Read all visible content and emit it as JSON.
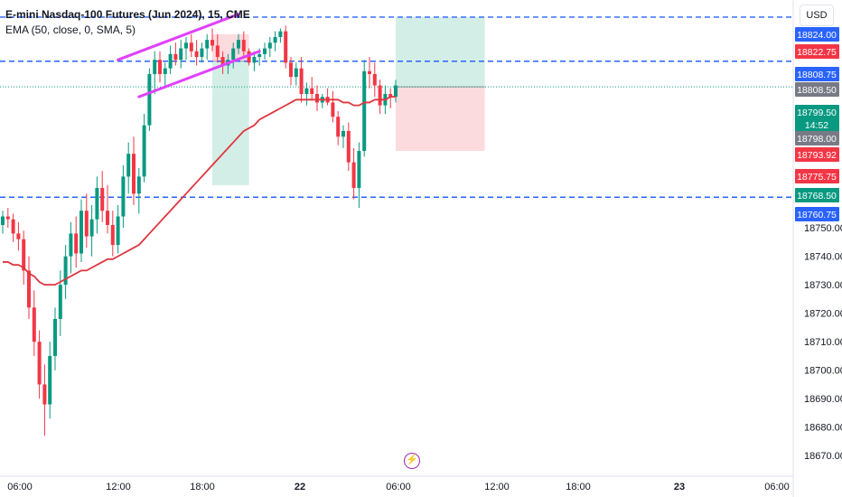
{
  "header": {
    "title": "E-mini Nasdaq-100 Futures (Jun 2024), 15, CME",
    "indicator": "EMA (50, close, 0, SMA, 5)"
  },
  "currency_button": "USD",
  "bolt_icon": "lightning-bolt-icon",
  "colors": {
    "up": "#089981",
    "down": "#f23645",
    "ema": "#e0363f",
    "channel": "#e040fb",
    "dashed": "#2962ff",
    "target_zone": "#d1ede5",
    "stop_zone": "#fcd9dd"
  },
  "chart_data": {
    "type": "candlestick",
    "instrument": "E-mini Nasdaq-100 Futures (Jun 2024)",
    "timeframe": "15",
    "exchange": "CME",
    "x_ticks": [
      "06:00",
      "12:00",
      "18:00",
      "22",
      "06:00",
      "12:00",
      "18:00",
      "23",
      "06:00"
    ],
    "y_ticks": [
      18750,
      18740,
      18730,
      18720,
      18710,
      18700,
      18690,
      18680,
      18670
    ],
    "ylim": [
      18665,
      18830
    ],
    "candles": [
      [
        18751,
        18756,
        18748,
        18754
      ],
      [
        18754,
        18757,
        18750,
        18753
      ],
      [
        18753,
        18755,
        18745,
        18748
      ],
      [
        18748,
        18752,
        18742,
        18746
      ],
      [
        18746,
        18749,
        18730,
        18735
      ],
      [
        18735,
        18740,
        18718,
        18722
      ],
      [
        18722,
        18728,
        18705,
        18710
      ],
      [
        18710,
        18714,
        18690,
        18695
      ],
      [
        18695,
        18702,
        18677,
        18688
      ],
      [
        18688,
        18710,
        18683,
        18705
      ],
      [
        18705,
        18722,
        18700,
        18718
      ],
      [
        18718,
        18735,
        18712,
        18730
      ],
      [
        18730,
        18744,
        18725,
        18740
      ],
      [
        18740,
        18752,
        18734,
        18748
      ],
      [
        18748,
        18754,
        18736,
        18741
      ],
      [
        18741,
        18760,
        18738,
        18756
      ],
      [
        18756,
        18762,
        18743,
        18747
      ],
      [
        18747,
        18758,
        18740,
        18753
      ],
      [
        18753,
        18768,
        18748,
        18764
      ],
      [
        18764,
        18770,
        18752,
        18756
      ],
      [
        18756,
        18765,
        18748,
        18751
      ],
      [
        18751,
        18756,
        18740,
        18744
      ],
      [
        18744,
        18758,
        18741,
        18754
      ],
      [
        18754,
        18772,
        18750,
        18768
      ],
      [
        18768,
        18780,
        18762,
        18776
      ],
      [
        18776,
        18782,
        18758,
        18762
      ],
      [
        18762,
        18771,
        18755,
        18768
      ],
      [
        18768,
        18790,
        18766,
        18786
      ],
      [
        18786,
        18806,
        18784,
        18804
      ],
      [
        18804,
        18812,
        18797,
        18809
      ],
      [
        18809,
        18812,
        18801,
        18804
      ],
      [
        18804,
        18808,
        18799,
        18806
      ],
      [
        18806,
        18814,
        18804,
        18811
      ],
      [
        18811,
        18815,
        18807,
        18809
      ],
      [
        18809,
        18816,
        18806,
        18813
      ],
      [
        18813,
        18817,
        18809,
        18815
      ],
      [
        18815,
        18818,
        18810,
        18812
      ],
      [
        18812,
        18816,
        18807,
        18810
      ],
      [
        18810,
        18815,
        18808,
        18813
      ],
      [
        18813,
        18818,
        18809,
        18816
      ],
      [
        18816,
        18820,
        18812,
        18814
      ],
      [
        18814,
        18818,
        18808,
        18810
      ],
      [
        18810,
        18812,
        18804,
        18807
      ],
      [
        18807,
        18811,
        18804,
        18809
      ],
      [
        18809,
        18815,
        18806,
        18813
      ],
      [
        18813,
        18818,
        18811,
        18816
      ],
      [
        18816,
        18819,
        18810,
        18812
      ],
      [
        18812,
        18813,
        18807,
        18808
      ],
      [
        18808,
        18812,
        18805,
        18810
      ],
      [
        18810,
        18813,
        18807,
        18811
      ],
      [
        18811,
        18815,
        18809,
        18813
      ],
      [
        18813,
        18817,
        18810,
        18815
      ],
      [
        18815,
        18819,
        18812,
        18817
      ],
      [
        18817,
        18820,
        18815,
        18819
      ],
      [
        18819,
        18821,
        18806,
        18808
      ],
      [
        18808,
        18810,
        18800,
        18803
      ],
      [
        18803,
        18808,
        18800,
        18806
      ],
      [
        18806,
        18810,
        18794,
        18797
      ],
      [
        18797,
        18801,
        18793,
        18799
      ],
      [
        18799,
        18803,
        18795,
        18797
      ],
      [
        18797,
        18800,
        18791,
        18794
      ],
      [
        18794,
        18797,
        18792,
        18796
      ],
      [
        18796,
        18799,
        18793,
        18794
      ],
      [
        18794,
        18798,
        18787,
        18789
      ],
      [
        18789,
        18791,
        18779,
        18782
      ],
      [
        18782,
        18786,
        18778,
        18784
      ],
      [
        18784,
        18787,
        18770,
        18773
      ],
      [
        18773,
        18778,
        18760,
        18764
      ],
      [
        18764,
        18780,
        18757,
        18777
      ],
      [
        18777,
        18809,
        18775,
        18805
      ],
      [
        18805,
        18810,
        18799,
        18804
      ],
      [
        18804,
        18808,
        18796,
        18800
      ],
      [
        18800,
        18802,
        18790,
        18793
      ],
      [
        18793,
        18800,
        18790,
        18797
      ],
      [
        18797,
        18799,
        18792,
        18796
      ],
      [
        18796,
        18802,
        18794,
        18800
      ]
    ],
    "ema50": [
      18738,
      18738,
      18737,
      18737,
      18736,
      18734,
      18733,
      18731,
      18730,
      18730,
      18730,
      18731,
      18732,
      18733,
      18734,
      18735,
      18735,
      18736,
      18737,
      18738,
      18739,
      18739,
      18740,
      18741,
      18742,
      18743,
      18744,
      18746,
      18748,
      18750,
      18752,
      18754,
      18756,
      18758,
      18760,
      18762,
      18764,
      18766,
      18768,
      18770,
      18772,
      18774,
      18776,
      18778,
      18780,
      18782,
      18784,
      18785,
      18786,
      18788,
      18789,
      18790,
      18791,
      18792,
      18793,
      18794,
      18795,
      18795,
      18795,
      18795,
      18795,
      18795,
      18795,
      18795,
      18795,
      18794,
      18794,
      18793,
      18793,
      18794,
      18794,
      18795,
      18795,
      18795,
      18796,
      18796
    ],
    "channel_lines": [
      {
        "from_index": 22,
        "to_index": 45,
        "from": 18809,
        "to": 18825
      },
      {
        "from_index": 26,
        "to_index": 49,
        "from": 18796,
        "to": 18812
      }
    ],
    "horizontal_levels": [
      18824.0,
      18808.5,
      18760.75
    ],
    "last_price_line": 18799.5,
    "right_axis_labels": [
      {
        "text": "18824.00",
        "color": "#2962ff",
        "value": 18824.0
      },
      {
        "text": "18822.75",
        "color": "#f23645",
        "value": 18822.75
      },
      {
        "text": "18808.75",
        "color": "#2962ff",
        "value": 18808.75
      },
      {
        "text": "18808.50",
        "color": "#787b86",
        "value": 18808.5
      },
      {
        "text": "18799.50",
        "sub": "14:52",
        "color": "#089981",
        "value": 18799.5
      },
      {
        "text": "18798.00",
        "color": "#787b86",
        "value": 18798.0
      },
      {
        "text": "18793.92",
        "color": "#f23645",
        "value": 18793.92
      },
      {
        "text": "18775.75",
        "color": "#f23645",
        "value": 18775.75
      },
      {
        "text": "18768.50",
        "color": "#089981",
        "value": 18768.5
      },
      {
        "text": "18760.75",
        "color": "#2962ff",
        "value": 18760.75
      }
    ],
    "position_tools": [
      {
        "kind": "short",
        "from_index": 40,
        "to_index": 47,
        "entry": 18808.5,
        "stop": 18818,
        "target": 18765
      },
      {
        "kind": "long",
        "from_index": 75,
        "to_index": 92,
        "entry": 18799.5,
        "stop": 18777,
        "target": 18824
      }
    ]
  }
}
